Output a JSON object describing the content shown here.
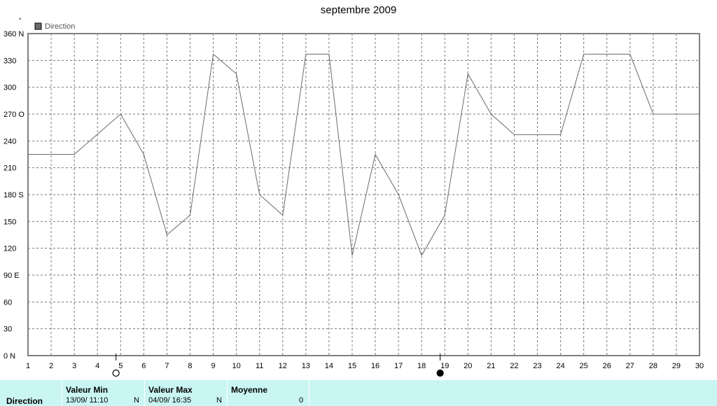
{
  "chart_data": {
    "type": "line",
    "title": "septembre 2009",
    "degree_symbol": "°",
    "legend": {
      "label": "Direction",
      "color": "#6b6b6b",
      "placement": "top-left"
    },
    "xlim": [
      1,
      30
    ],
    "ylim": [
      0,
      360
    ],
    "grid": true,
    "x_ticks": [
      "1",
      "2",
      "3",
      "4",
      "5",
      "6",
      "7",
      "8",
      "9",
      "10",
      "11",
      "12",
      "13",
      "14",
      "15",
      "16",
      "17",
      "18",
      "19",
      "20",
      "21",
      "22",
      "23",
      "24",
      "25",
      "26",
      "27",
      "28",
      "29",
      "30"
    ],
    "y_ticks": [
      {
        "value": 360,
        "label": "360 N"
      },
      {
        "value": 330,
        "label": "330"
      },
      {
        "value": 300,
        "label": "300"
      },
      {
        "value": 270,
        "label": "270 O"
      },
      {
        "value": 240,
        "label": "240"
      },
      {
        "value": 210,
        "label": "210"
      },
      {
        "value": 180,
        "label": "180 S"
      },
      {
        "value": 150,
        "label": "150"
      },
      {
        "value": 120,
        "label": "120"
      },
      {
        "value": 90,
        "label": "90  E"
      },
      {
        "value": 60,
        "label": "60"
      },
      {
        "value": 30,
        "label": "30"
      },
      {
        "value": 0,
        "label": "0   N"
      }
    ],
    "moon_markers": [
      {
        "x": 4.8,
        "phase": "full"
      },
      {
        "x": 18.8,
        "phase": "new"
      }
    ],
    "series": [
      {
        "color": "#6b6b6b",
        "points": [
          [
            1,
            225
          ],
          [
            3,
            225
          ],
          [
            5,
            270
          ],
          [
            6,
            225
          ],
          [
            7,
            135
          ],
          [
            8,
            157
          ],
          [
            9,
            337
          ],
          [
            10,
            315
          ],
          [
            11,
            180
          ],
          [
            12,
            157
          ],
          [
            13,
            337
          ],
          [
            14,
            337
          ],
          [
            15,
            112
          ],
          [
            16,
            225
          ],
          [
            17,
            180
          ],
          [
            18,
            112
          ],
          [
            19,
            157
          ],
          [
            20,
            315
          ],
          [
            21,
            270
          ],
          [
            22,
            247
          ],
          [
            24,
            247
          ],
          [
            25,
            337
          ],
          [
            27,
            337
          ],
          [
            28,
            270
          ],
          [
            30,
            270
          ]
        ]
      }
    ]
  },
  "summary": {
    "row_label": "Direction",
    "min": {
      "header": "Valeur Min",
      "value": "13/09/  11:10",
      "unit": "N"
    },
    "max": {
      "header": "Valeur Max",
      "value": "04/09/  16:35",
      "unit": "N"
    },
    "avg": {
      "header": "Moyenne",
      "value": "0"
    }
  }
}
